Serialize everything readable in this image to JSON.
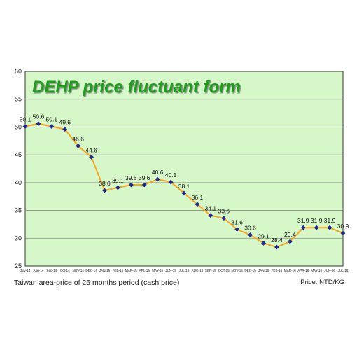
{
  "chart_data": {
    "type": "line",
    "title": "DEHP price fluctuant form",
    "categories": [
      "July-14",
      "Aug-14",
      "Sep-14",
      "Oct-14",
      "NOV-14",
      "DEC-14",
      "JAN-15",
      "FEB-15",
      "MAR-15",
      "APL-15",
      "MAY-15",
      "JUN-15",
      "JUL-15",
      "AUG-15",
      "SEP-15",
      "OCT-15",
      "NOV-15",
      "DEC-15",
      "JAN-16",
      "FEB-16",
      "MAR-16",
      "APR-16",
      "MAY-16",
      "JUN-16",
      "JUL-16"
    ],
    "values": [
      50.1,
      50.6,
      50.1,
      49.6,
      46.6,
      44.6,
      38.6,
      39.1,
      39.6,
      39.6,
      40.6,
      40.1,
      38.1,
      36.1,
      34.1,
      33.6,
      31.6,
      30.6,
      29.1,
      28.4,
      29.4,
      31.9,
      31.9,
      31.9,
      30.9
    ],
    "ylim": [
      25,
      60
    ],
    "yticks": [
      25,
      30,
      35,
      40,
      45,
      50,
      55,
      60
    ],
    "grid": true,
    "colors": {
      "line": "#f5a623",
      "marker": "#1f2a8c",
      "plot_bg": "#d6f7c8",
      "grid": "#8a8a8a",
      "title": "#1f9e1f"
    }
  },
  "footer": {
    "caption": "Taiwan area-price of 25 months period (cash price)",
    "unit": "Price: NTD/KG"
  }
}
